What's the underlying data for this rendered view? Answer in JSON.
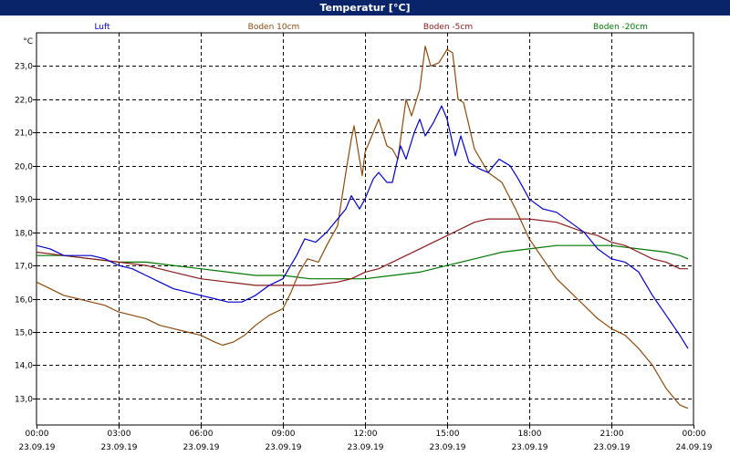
{
  "window": {
    "title": "Temperatur [°C]"
  },
  "chart_data": {
    "type": "line",
    "title": "Temperatur [°C]",
    "ylabel": "°C",
    "xlabel": "",
    "ylim": [
      12.2,
      24.0
    ],
    "yticks": [
      {
        "value": 13.0,
        "label": "13,0"
      },
      {
        "value": 14.0,
        "label": "14,0"
      },
      {
        "value": 15.0,
        "label": "15,0"
      },
      {
        "value": 16.0,
        "label": "16,0"
      },
      {
        "value": 17.0,
        "label": "17,0"
      },
      {
        "value": 18.0,
        "label": "18,0"
      },
      {
        "value": 19.0,
        "label": "19,0"
      },
      {
        "value": 20.0,
        "label": "20,0"
      },
      {
        "value": 21.0,
        "label": "21,0"
      },
      {
        "value": 22.0,
        "label": "22,0"
      },
      {
        "value": 23.0,
        "label": "23,0"
      }
    ],
    "xlim_hours": [
      0,
      24
    ],
    "xticks": [
      {
        "hour": 0,
        "time": "00:00",
        "date": "23.09.19"
      },
      {
        "hour": 3,
        "time": "03:00",
        "date": "23.09.19"
      },
      {
        "hour": 6,
        "time": "06:00",
        "date": "23.09.19"
      },
      {
        "hour": 9,
        "time": "09:00",
        "date": "23.09.19"
      },
      {
        "hour": 12,
        "time": "12:00",
        "date": "23.09.19"
      },
      {
        "hour": 15,
        "time": "15:00",
        "date": "23.09.19"
      },
      {
        "hour": 18,
        "time": "18:00",
        "date": "23.09.19"
      },
      {
        "hour": 21,
        "time": "21:00",
        "date": "23.09.19"
      },
      {
        "hour": 24,
        "time": "00:00",
        "date": "24.09.19"
      }
    ],
    "grid": true,
    "legend_position": "top",
    "series": [
      {
        "name": "Luft",
        "color": "#0000cc",
        "points": [
          [
            0,
            17.6
          ],
          [
            0.5,
            17.5
          ],
          [
            1,
            17.3
          ],
          [
            1.5,
            17.3
          ],
          [
            2,
            17.3
          ],
          [
            2.5,
            17.2
          ],
          [
            3,
            17.0
          ],
          [
            3.5,
            16.9
          ],
          [
            4,
            16.7
          ],
          [
            4.5,
            16.5
          ],
          [
            5,
            16.3
          ],
          [
            5.5,
            16.2
          ],
          [
            6,
            16.1
          ],
          [
            6.5,
            16.0
          ],
          [
            7,
            15.9
          ],
          [
            7.5,
            15.9
          ],
          [
            8,
            16.1
          ],
          [
            8.5,
            16.4
          ],
          [
            9,
            16.6
          ],
          [
            9.5,
            17.3
          ],
          [
            9.8,
            17.8
          ],
          [
            10.2,
            17.7
          ],
          [
            10.6,
            18.0
          ],
          [
            11,
            18.4
          ],
          [
            11.3,
            18.7
          ],
          [
            11.5,
            19.1
          ],
          [
            11.8,
            18.7
          ],
          [
            12,
            19.0
          ],
          [
            12.3,
            19.6
          ],
          [
            12.5,
            19.8
          ],
          [
            12.8,
            19.5
          ],
          [
            13,
            19.5
          ],
          [
            13.3,
            20.6
          ],
          [
            13.5,
            20.2
          ],
          [
            13.8,
            21.0
          ],
          [
            14,
            21.4
          ],
          [
            14.2,
            20.9
          ],
          [
            14.5,
            21.3
          ],
          [
            14.8,
            21.8
          ],
          [
            15,
            21.4
          ],
          [
            15.3,
            20.3
          ],
          [
            15.5,
            20.9
          ],
          [
            15.8,
            20.1
          ],
          [
            16.2,
            19.9
          ],
          [
            16.5,
            19.8
          ],
          [
            16.9,
            20.2
          ],
          [
            17.3,
            20.0
          ],
          [
            17.6,
            19.6
          ],
          [
            18,
            19.0
          ],
          [
            18.5,
            18.7
          ],
          [
            19,
            18.6
          ],
          [
            19.5,
            18.3
          ],
          [
            20,
            18.0
          ],
          [
            20.5,
            17.5
          ],
          [
            21,
            17.2
          ],
          [
            21.5,
            17.1
          ],
          [
            22,
            16.8
          ],
          [
            22.5,
            16.1
          ],
          [
            23,
            15.5
          ],
          [
            23.5,
            14.9
          ],
          [
            23.8,
            14.5
          ]
        ]
      },
      {
        "name": "Boden 10cm",
        "color": "#8b4a0e",
        "points": [
          [
            0,
            16.5
          ],
          [
            0.5,
            16.3
          ],
          [
            1,
            16.1
          ],
          [
            1.5,
            16.0
          ],
          [
            2,
            15.9
          ],
          [
            2.5,
            15.8
          ],
          [
            3,
            15.6
          ],
          [
            3.5,
            15.5
          ],
          [
            4,
            15.4
          ],
          [
            4.5,
            15.2
          ],
          [
            5,
            15.1
          ],
          [
            5.5,
            15.0
          ],
          [
            6,
            14.9
          ],
          [
            6.5,
            14.7
          ],
          [
            6.8,
            14.6
          ],
          [
            7.2,
            14.7
          ],
          [
            7.6,
            14.9
          ],
          [
            8,
            15.2
          ],
          [
            8.5,
            15.5
          ],
          [
            9,
            15.7
          ],
          [
            9.3,
            16.2
          ],
          [
            9.6,
            16.8
          ],
          [
            9.9,
            17.2
          ],
          [
            10.3,
            17.1
          ],
          [
            10.6,
            17.6
          ],
          [
            11,
            18.2
          ],
          [
            11.3,
            19.8
          ],
          [
            11.5,
            20.8
          ],
          [
            11.6,
            21.2
          ],
          [
            11.9,
            19.7
          ],
          [
            12,
            20.4
          ],
          [
            12.3,
            21.0
          ],
          [
            12.5,
            21.4
          ],
          [
            12.8,
            20.6
          ],
          [
            13,
            20.5
          ],
          [
            13.2,
            20.2
          ],
          [
            13.5,
            22.0
          ],
          [
            13.7,
            21.5
          ],
          [
            14,
            22.3
          ],
          [
            14.2,
            23.6
          ],
          [
            14.4,
            23.0
          ],
          [
            14.7,
            23.1
          ],
          [
            15,
            23.5
          ],
          [
            15.2,
            23.4
          ],
          [
            15.4,
            22.0
          ],
          [
            15.6,
            21.9
          ],
          [
            16,
            20.5
          ],
          [
            16.5,
            19.8
          ],
          [
            17,
            19.5
          ],
          [
            17.5,
            18.7
          ],
          [
            18,
            17.8
          ],
          [
            18.5,
            17.2
          ],
          [
            19,
            16.6
          ],
          [
            19.5,
            16.2
          ],
          [
            20,
            15.8
          ],
          [
            20.5,
            15.4
          ],
          [
            21,
            15.1
          ],
          [
            21.5,
            14.9
          ],
          [
            22,
            14.5
          ],
          [
            22.5,
            14.0
          ],
          [
            23,
            13.3
          ],
          [
            23.5,
            12.8
          ],
          [
            23.8,
            12.7
          ]
        ]
      },
      {
        "name": "Boden -5cm",
        "color": "#8b1a1a",
        "points": [
          [
            0,
            17.4
          ],
          [
            1,
            17.3
          ],
          [
            2,
            17.2
          ],
          [
            3,
            17.1
          ],
          [
            4,
            17.0
          ],
          [
            5,
            16.8
          ],
          [
            6,
            16.6
          ],
          [
            7,
            16.5
          ],
          [
            8,
            16.4
          ],
          [
            9,
            16.4
          ],
          [
            10,
            16.4
          ],
          [
            11,
            16.5
          ],
          [
            11.5,
            16.6
          ],
          [
            12,
            16.8
          ],
          [
            12.5,
            16.9
          ],
          [
            13,
            17.1
          ],
          [
            13.5,
            17.3
          ],
          [
            14,
            17.5
          ],
          [
            14.5,
            17.7
          ],
          [
            15,
            17.9
          ],
          [
            15.5,
            18.1
          ],
          [
            16,
            18.3
          ],
          [
            16.5,
            18.4
          ],
          [
            17,
            18.4
          ],
          [
            18,
            18.4
          ],
          [
            19,
            18.3
          ],
          [
            20,
            18.0
          ],
          [
            20.5,
            17.9
          ],
          [
            21,
            17.7
          ],
          [
            21.5,
            17.6
          ],
          [
            22,
            17.4
          ],
          [
            22.5,
            17.2
          ],
          [
            23,
            17.1
          ],
          [
            23.5,
            16.9
          ],
          [
            23.8,
            16.9
          ]
        ]
      },
      {
        "name": "Boden -20cm",
        "color": "#007700",
        "points": [
          [
            0,
            17.3
          ],
          [
            1,
            17.3
          ],
          [
            2,
            17.2
          ],
          [
            3,
            17.1
          ],
          [
            4,
            17.1
          ],
          [
            5,
            17.0
          ],
          [
            6,
            16.9
          ],
          [
            7,
            16.8
          ],
          [
            8,
            16.7
          ],
          [
            9,
            16.7
          ],
          [
            10,
            16.6
          ],
          [
            11,
            16.6
          ],
          [
            12,
            16.6
          ],
          [
            13,
            16.7
          ],
          [
            14,
            16.8
          ],
          [
            15,
            17.0
          ],
          [
            16,
            17.2
          ],
          [
            16.5,
            17.3
          ],
          [
            17,
            17.4
          ],
          [
            18,
            17.5
          ],
          [
            19,
            17.6
          ],
          [
            20,
            17.6
          ],
          [
            21,
            17.6
          ],
          [
            22,
            17.5
          ],
          [
            23,
            17.4
          ],
          [
            23.5,
            17.3
          ],
          [
            23.8,
            17.2
          ]
        ]
      }
    ]
  }
}
